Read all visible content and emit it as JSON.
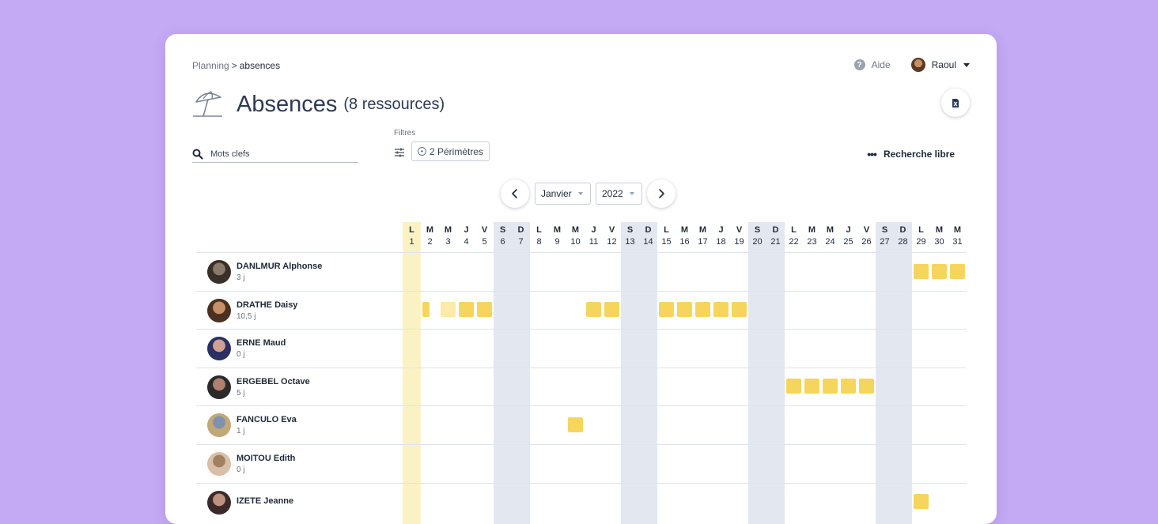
{
  "breadcrumb": {
    "parent": "Planning",
    "separator": ">",
    "current": "absences"
  },
  "header": {
    "help_label": "Aide",
    "user_name": "Raoul"
  },
  "title": {
    "main": "Absences",
    "count": "(8 ressources)"
  },
  "search": {
    "placeholder": "Mots clefs",
    "value": ""
  },
  "filters": {
    "label": "Filtres",
    "perimeters": "2 Périmètres"
  },
  "free_search": {
    "label": "Recherche libre"
  },
  "calendar": {
    "month": "Janvier",
    "year": "2022",
    "days": [
      {
        "letter": "L",
        "num": "1",
        "type": "holiday"
      },
      {
        "letter": "M",
        "num": "2",
        "type": "work"
      },
      {
        "letter": "M",
        "num": "3",
        "type": "work"
      },
      {
        "letter": "J",
        "num": "4",
        "type": "work"
      },
      {
        "letter": "V",
        "num": "5",
        "type": "work"
      },
      {
        "letter": "S",
        "num": "6",
        "type": "weekend"
      },
      {
        "letter": "D",
        "num": "7",
        "type": "weekend"
      },
      {
        "letter": "L",
        "num": "8",
        "type": "work"
      },
      {
        "letter": "M",
        "num": "9",
        "type": "work"
      },
      {
        "letter": "M",
        "num": "10",
        "type": "work"
      },
      {
        "letter": "J",
        "num": "11",
        "type": "work"
      },
      {
        "letter": "V",
        "num": "12",
        "type": "work"
      },
      {
        "letter": "S",
        "num": "13",
        "type": "weekend"
      },
      {
        "letter": "D",
        "num": "14",
        "type": "weekend"
      },
      {
        "letter": "L",
        "num": "15",
        "type": "work"
      },
      {
        "letter": "M",
        "num": "16",
        "type": "work"
      },
      {
        "letter": "M",
        "num": "17",
        "type": "work"
      },
      {
        "letter": "J",
        "num": "18",
        "type": "work"
      },
      {
        "letter": "V",
        "num": "19",
        "type": "work"
      },
      {
        "letter": "S",
        "num": "20",
        "type": "weekend"
      },
      {
        "letter": "D",
        "num": "21",
        "type": "weekend"
      },
      {
        "letter": "L",
        "num": "22",
        "type": "work"
      },
      {
        "letter": "M",
        "num": "23",
        "type": "work"
      },
      {
        "letter": "M",
        "num": "24",
        "type": "work"
      },
      {
        "letter": "J",
        "num": "25",
        "type": "work"
      },
      {
        "letter": "V",
        "num": "26",
        "type": "work"
      },
      {
        "letter": "S",
        "num": "27",
        "type": "weekend"
      },
      {
        "letter": "D",
        "num": "28",
        "type": "weekend"
      },
      {
        "letter": "L",
        "num": "29",
        "type": "work"
      },
      {
        "letter": "M",
        "num": "30",
        "type": "work"
      },
      {
        "letter": "M",
        "num": "31",
        "type": "work"
      }
    ]
  },
  "resources": [
    {
      "name": "DANLMUR Alphonse",
      "days": "3 j",
      "avatar_colors": [
        "#3a302a",
        "#8a7a6a"
      ],
      "absences": [
        {
          "day": 29
        },
        {
          "day": 30
        },
        {
          "day": 31
        }
      ]
    },
    {
      "name": "DRATHE Daisy",
      "days": "10,5 j",
      "avatar_colors": [
        "#4a3020",
        "#c89068"
      ],
      "absences": [
        {
          "day": 2,
          "part": "am"
        },
        {
          "day": 3,
          "part": "light"
        },
        {
          "day": 4
        },
        {
          "day": 5
        },
        {
          "day": 11
        },
        {
          "day": 12
        },
        {
          "day": 15
        },
        {
          "day": 16
        },
        {
          "day": 17
        },
        {
          "day": 18
        },
        {
          "day": 19
        }
      ]
    },
    {
      "name": "ERNE Maud",
      "days": "0 j",
      "avatar_colors": [
        "#2a3060",
        "#d0a090"
      ],
      "absences": []
    },
    {
      "name": "ERGEBEL Octave",
      "days": "5 j",
      "avatar_colors": [
        "#2a2a2a",
        "#b08070"
      ],
      "absences": [
        {
          "day": 22
        },
        {
          "day": 23
        },
        {
          "day": 24
        },
        {
          "day": 25
        },
        {
          "day": 26
        }
      ]
    },
    {
      "name": "FANCULO Eva",
      "days": "1 j",
      "avatar_colors": [
        "#c0a878",
        "#8090b0"
      ],
      "absences": [
        {
          "day": 10
        }
      ]
    },
    {
      "name": "MOITOU Edith",
      "days": "0 j",
      "avatar_colors": [
        "#d8c0a8",
        "#a08060"
      ],
      "absences": []
    },
    {
      "name": "IZETE Jeanne",
      "days": "",
      "avatar_colors": [
        "#3a2a2a",
        "#c09080"
      ],
      "absences": [
        {
          "day": 29
        }
      ]
    }
  ],
  "colors": {
    "absence": "#f6d55c",
    "absence_light": "#fbeaa8",
    "weekend": "#e3e8f0",
    "holiday": "#fbf2c4",
    "background": "#c4a9f4"
  }
}
